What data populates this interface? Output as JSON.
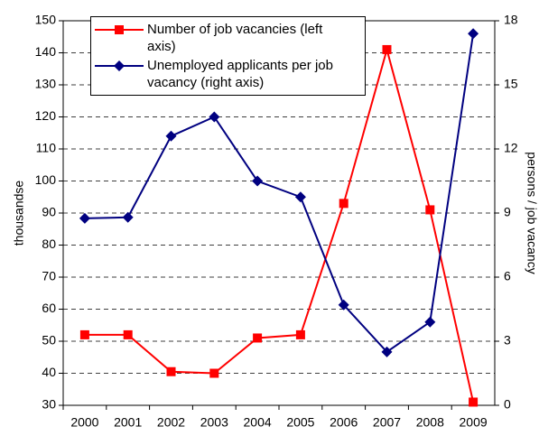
{
  "chart_data": {
    "type": "line",
    "ylabel": "thousandse",
    "y2label": "persons / job vacancy",
    "categories": [
      "2000",
      "2001",
      "2002",
      "2003",
      "2004",
      "2005",
      "2006",
      "2007",
      "2008",
      "2009"
    ],
    "series": [
      {
        "name": "Number of job vacancies (left axis)",
        "color": "#ff0000",
        "marker": "square",
        "values": [
          52,
          52,
          40.5,
          40,
          51,
          52,
          93,
          141,
          91,
          31
        ]
      },
      {
        "name": "Unemployed applicants per job vacancy (right axis)",
        "color": "#000080",
        "marker": "diamond",
        "axis": "y2",
        "values": [
          8.75,
          8.8,
          12.6,
          13.5,
          10.5,
          9.75,
          4.7,
          2.5,
          3.9,
          17.4
        ]
      }
    ],
    "ylim": [
      30,
      150
    ],
    "yticks": [
      30,
      40,
      50,
      60,
      70,
      80,
      90,
      100,
      110,
      120,
      130,
      140,
      150
    ],
    "y2lim": [
      0,
      18
    ],
    "y2ticks": [
      0,
      3,
      6,
      9,
      12,
      15,
      18
    ],
    "grid": true
  }
}
